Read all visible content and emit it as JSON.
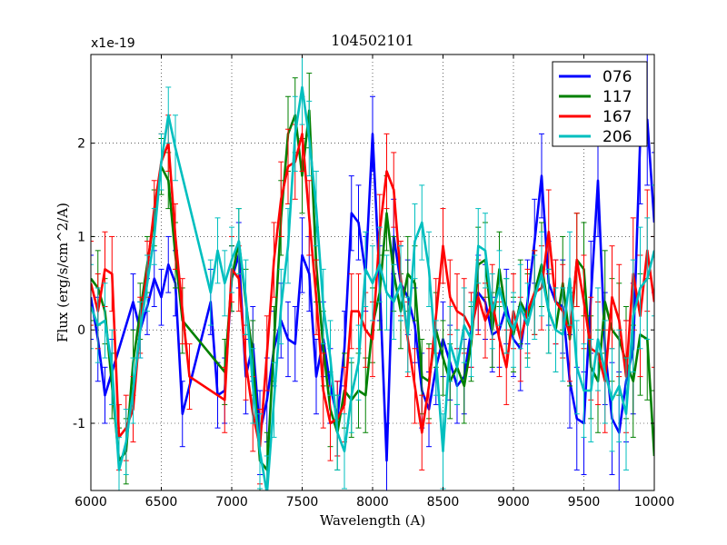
{
  "chart_data": {
    "type": "line",
    "title": "104502101",
    "xlabel": "Wavelength (A)",
    "ylabel": "Flux (erg/s/cm^2/A)",
    "y_multiplier": "x1e-19",
    "xlim": [
      6000,
      10000
    ],
    "ylim": [
      -1.72,
      2.95
    ],
    "grid": true,
    "legend_position": "top-right",
    "x_ticks": [
      6000,
      6500,
      7000,
      7500,
      8000,
      8500,
      9000,
      9500,
      10000
    ],
    "x_tick_labels": [
      "6000",
      "6500",
      "7000",
      "7500",
      "8000",
      "8500",
      "9000",
      "9500",
      "10000"
    ],
    "y_ticks": [
      -1,
      0,
      1,
      2
    ],
    "y_tick_labels": [
      "-1",
      "0",
      "1",
      "2"
    ],
    "series": [
      {
        "name": "076",
        "color": "#0000ff",
        "x": [
          6000,
          6050,
          6100,
          6150,
          6300,
          6350,
          6400,
          6450,
          6500,
          6550,
          6600,
          6650,
          6850,
          6900,
          6950,
          7000,
          7050,
          7100,
          7150,
          7200,
          7250,
          7300,
          7350,
          7400,
          7450,
          7500,
          7550,
          7600,
          7650,
          7700,
          7750,
          7800,
          7850,
          7900,
          7950,
          8000,
          8050,
          8100,
          8150,
          8200,
          8250,
          8300,
          8350,
          8400,
          8450,
          8500,
          8550,
          8600,
          8650,
          8700,
          8750,
          8800,
          8850,
          8900,
          8950,
          9000,
          9050,
          9100,
          9150,
          9200,
          9250,
          9300,
          9350,
          9400,
          9450,
          9500,
          9550,
          9600,
          9650,
          9700,
          9750,
          9800,
          9850,
          9900,
          9950,
          10000
        ],
        "y": [
          0.35,
          -0.1,
          -0.7,
          -0.45,
          0.3,
          0.0,
          0.25,
          0.55,
          0.35,
          0.7,
          0.5,
          -0.9,
          0.3,
          -0.7,
          -0.65,
          0.55,
          0.8,
          -0.5,
          -0.15,
          -1.1,
          -0.75,
          -0.2,
          0.1,
          -0.1,
          -0.15,
          0.8,
          0.6,
          -0.5,
          -0.1,
          -0.6,
          -0.95,
          -0.2,
          1.25,
          1.15,
          0.6,
          2.1,
          0.5,
          -1.4,
          1.0,
          0.5,
          0.35,
          0.05,
          -0.65,
          -0.85,
          -0.4,
          -0.1,
          -0.35,
          -0.6,
          -0.5,
          0.0,
          0.4,
          0.3,
          -0.05,
          0.0,
          0.25,
          -0.1,
          -0.2,
          0.3,
          0.95,
          1.65,
          0.5,
          0.3,
          0.25,
          -0.55,
          -0.95,
          -1.0,
          0.35,
          1.6,
          -0.2,
          -0.95,
          -1.1,
          -0.55,
          -0.2,
          2.05,
          2.25,
          1.15
        ],
        "err": [
          0.45,
          0.45,
          0.3,
          0.35,
          0.3,
          0.3,
          0.3,
          0.3,
          0.3,
          0.3,
          0.35,
          0.35,
          0.35,
          0.35,
          0.35,
          0.35,
          0.35,
          0.4,
          0.4,
          0.45,
          0.45,
          0.4,
          0.4,
          0.4,
          0.4,
          0.4,
          0.4,
          0.4,
          0.4,
          0.4,
          0.4,
          0.4,
          0.4,
          0.4,
          0.4,
          0.4,
          0.4,
          0.4,
          0.4,
          0.4,
          0.4,
          0.4,
          0.4,
          0.4,
          0.4,
          0.4,
          0.4,
          0.4,
          0.4,
          0.4,
          0.4,
          0.4,
          0.4,
          0.4,
          0.4,
          0.4,
          0.45,
          0.45,
          0.45,
          0.45,
          0.45,
          0.45,
          0.5,
          0.5,
          0.55,
          0.55,
          0.6,
          0.6,
          0.6,
          0.6,
          0.65,
          0.65,
          0.7,
          0.7,
          0.7,
          0.75
        ]
      },
      {
        "name": "117",
        "color": "#008000",
        "x": [
          6000,
          6050,
          6100,
          6150,
          6200,
          6250,
          6300,
          6350,
          6400,
          6450,
          6500,
          6550,
          6600,
          6650,
          6950,
          7000,
          7050,
          7100,
          7150,
          7200,
          7250,
          7300,
          7350,
          7400,
          7450,
          7500,
          7550,
          7600,
          7650,
          7700,
          7750,
          7800,
          7850,
          7900,
          7950,
          8000,
          8050,
          8100,
          8150,
          8200,
          8250,
          8300,
          8350,
          8400,
          8450,
          8500,
          8550,
          8600,
          8650,
          8700,
          8750,
          8800,
          8850,
          8900,
          8950,
          9000,
          9050,
          9100,
          9150,
          9200,
          9250,
          9300,
          9350,
          9400,
          9450,
          9500,
          9550,
          9600,
          9650,
          9700,
          9750,
          9800,
          9850,
          9900,
          9950,
          10000
        ],
        "y": [
          0.55,
          0.45,
          0.2,
          -0.6,
          -1.4,
          -1.3,
          -0.35,
          0.2,
          0.7,
          1.2,
          1.75,
          1.6,
          0.8,
          0.1,
          -0.45,
          0.55,
          0.95,
          0.3,
          -0.3,
          -1.4,
          -1.5,
          -0.15,
          1.2,
          2.1,
          2.3,
          1.65,
          2.35,
          0.7,
          -0.2,
          -0.85,
          -1.1,
          -0.65,
          -0.75,
          -0.65,
          -0.7,
          0.05,
          0.4,
          1.25,
          0.6,
          0.2,
          0.6,
          0.5,
          -0.5,
          -0.55,
          0.0,
          -0.3,
          -0.55,
          -0.4,
          -0.6,
          -0.15,
          0.7,
          0.75,
          0.0,
          0.65,
          0.15,
          -0.05,
          0.3,
          0.15,
          0.4,
          0.7,
          0.2,
          0.0,
          0.5,
          -0.1,
          0.75,
          0.65,
          -0.4,
          -0.55,
          0.3,
          0.0,
          -0.1,
          -0.35,
          -0.55,
          -0.05,
          -0.1,
          -1.35
        ],
        "err": [
          0.45,
          0.4,
          0.35,
          0.35,
          0.35,
          0.35,
          0.35,
          0.3,
          0.3,
          0.3,
          0.3,
          0.3,
          0.35,
          0.35,
          0.35,
          0.35,
          0.35,
          0.35,
          0.4,
          0.4,
          0.4,
          0.4,
          0.4,
          0.4,
          0.4,
          0.4,
          0.4,
          0.4,
          0.4,
          0.4,
          0.4,
          0.4,
          0.4,
          0.4,
          0.4,
          0.4,
          0.4,
          0.4,
          0.4,
          0.4,
          0.4,
          0.4,
          0.4,
          0.4,
          0.4,
          0.4,
          0.4,
          0.4,
          0.4,
          0.4,
          0.4,
          0.4,
          0.4,
          0.4,
          0.4,
          0.4,
          0.45,
          0.45,
          0.45,
          0.45,
          0.45,
          0.45,
          0.5,
          0.5,
          0.5,
          0.5,
          0.55,
          0.55,
          0.55,
          0.55,
          0.6,
          0.6,
          0.6,
          0.65,
          0.65,
          0.7
        ]
      },
      {
        "name": "167",
        "color": "#ff0000",
        "x": [
          6000,
          6050,
          6100,
          6150,
          6200,
          6250,
          6300,
          6350,
          6400,
          6450,
          6500,
          6550,
          6600,
          6650,
          6700,
          6950,
          7000,
          7050,
          7100,
          7150,
          7200,
          7250,
          7300,
          7350,
          7400,
          7450,
          7500,
          7550,
          7600,
          7650,
          7700,
          7750,
          7800,
          7850,
          7900,
          7950,
          8000,
          8050,
          8100,
          8150,
          8200,
          8250,
          8300,
          8350,
          8400,
          8450,
          8500,
          8550,
          8600,
          8650,
          8700,
          8750,
          8800,
          8850,
          8900,
          8950,
          9000,
          9050,
          9100,
          9150,
          9200,
          9250,
          9300,
          9350,
          9400,
          9450,
          9500,
          9550,
          9600,
          9650,
          9700,
          9750,
          9800,
          9850,
          9900,
          9950,
          10000
        ],
        "y": [
          0.5,
          0.2,
          0.65,
          0.6,
          -1.15,
          -1.05,
          -0.85,
          0.05,
          0.65,
          1.3,
          1.8,
          2.0,
          1.0,
          0.2,
          -0.5,
          -0.75,
          0.65,
          0.55,
          -0.35,
          -0.9,
          -1.25,
          -0.25,
          0.75,
          1.4,
          1.75,
          1.8,
          2.1,
          1.2,
          0.35,
          -0.65,
          -1.0,
          -0.95,
          -0.8,
          0.2,
          0.2,
          0.0,
          -0.1,
          1.05,
          1.7,
          1.5,
          0.55,
          -0.1,
          -0.6,
          -1.1,
          -0.6,
          0.15,
          0.9,
          0.35,
          0.2,
          0.15,
          0.0,
          0.35,
          0.1,
          0.3,
          -0.1,
          -0.4,
          0.2,
          -0.1,
          0.2,
          0.4,
          0.45,
          1.05,
          0.3,
          0.2,
          -0.05,
          0.75,
          0.3,
          -0.2,
          -0.25,
          -0.55,
          0.35,
          0.1,
          -0.5,
          0.6,
          0.15,
          0.85,
          0.3
        ],
        "err": [
          0.45,
          0.4,
          0.4,
          0.4,
          0.35,
          0.35,
          0.35,
          0.3,
          0.3,
          0.3,
          0.3,
          0.3,
          0.35,
          0.35,
          0.35,
          0.35,
          0.35,
          0.35,
          0.4,
          0.4,
          0.4,
          0.4,
          0.4,
          0.4,
          0.4,
          0.4,
          0.4,
          0.4,
          0.4,
          0.4,
          0.4,
          0.4,
          0.4,
          0.4,
          0.4,
          0.4,
          0.4,
          0.4,
          0.4,
          0.4,
          0.4,
          0.4,
          0.4,
          0.4,
          0.4,
          0.4,
          0.4,
          0.4,
          0.4,
          0.4,
          0.4,
          0.4,
          0.4,
          0.4,
          0.4,
          0.4,
          0.4,
          0.45,
          0.45,
          0.45,
          0.45,
          0.45,
          0.45,
          0.5,
          0.5,
          0.5,
          0.5,
          0.55,
          0.55,
          0.55,
          0.55,
          0.6,
          0.6,
          0.6,
          0.65,
          0.65,
          0.7
        ]
      },
      {
        "name": "206",
        "color": "#00bfbf",
        "x": [
          6000,
          6050,
          6100,
          6150,
          6200,
          6250,
          6300,
          6350,
          6400,
          6450,
          6500,
          6550,
          6600,
          6850,
          6900,
          6950,
          7000,
          7050,
          7100,
          7150,
          7200,
          7250,
          7300,
          7350,
          7400,
          7450,
          7500,
          7550,
          7600,
          7650,
          7700,
          7750,
          7800,
          7850,
          7900,
          7950,
          8000,
          8050,
          8100,
          8150,
          8200,
          8250,
          8300,
          8350,
          8400,
          8450,
          8500,
          8550,
          8600,
          8650,
          8700,
          8750,
          8800,
          8850,
          8900,
          8950,
          9000,
          9050,
          9100,
          9150,
          9200,
          9250,
          9300,
          9350,
          9400,
          9450,
          9500,
          9550,
          9600,
          9650,
          9700,
          9750,
          9800,
          9850,
          9900,
          9950,
          10000
        ],
        "y": [
          0.25,
          0.05,
          0.1,
          -0.4,
          -1.5,
          -1.2,
          -0.65,
          0.0,
          0.5,
          1.0,
          1.8,
          2.3,
          1.95,
          0.4,
          0.85,
          0.5,
          0.75,
          0.95,
          0.35,
          -0.6,
          -1.3,
          -1.75,
          -0.75,
          0.25,
          0.9,
          2.1,
          2.6,
          2.05,
          1.3,
          0.25,
          -0.3,
          -1.1,
          -1.3,
          -0.7,
          -0.35,
          0.65,
          0.5,
          0.7,
          0.4,
          0.3,
          0.5,
          -0.05,
          0.95,
          1.15,
          0.65,
          -0.3,
          -1.3,
          -0.15,
          -0.4,
          0.05,
          -0.1,
          0.9,
          0.85,
          0.2,
          0.45,
          0.15,
          0.0,
          0.25,
          0.05,
          0.35,
          0.6,
          0.2,
          0.0,
          -0.05,
          0.55,
          -0.4,
          -0.65,
          -0.65,
          -0.1,
          -0.45,
          -0.75,
          -0.6,
          -0.9,
          0.15,
          0.45,
          0.55,
          0.85
        ],
        "err": [
          0.45,
          0.4,
          0.4,
          0.4,
          0.35,
          0.35,
          0.35,
          0.3,
          0.3,
          0.3,
          0.3,
          0.3,
          0.35,
          0.35,
          0.35,
          0.35,
          0.35,
          0.35,
          0.4,
          0.4,
          0.4,
          0.4,
          0.4,
          0.4,
          0.4,
          0.4,
          0.4,
          0.4,
          0.4,
          0.4,
          0.4,
          0.4,
          0.4,
          0.4,
          0.4,
          0.4,
          0.4,
          0.4,
          0.4,
          0.4,
          0.4,
          0.4,
          0.4,
          0.4,
          0.4,
          0.4,
          0.4,
          0.4,
          0.4,
          0.4,
          0.4,
          0.4,
          0.4,
          0.4,
          0.4,
          0.4,
          0.4,
          0.45,
          0.45,
          0.45,
          0.45,
          0.45,
          0.45,
          0.5,
          0.5,
          0.5,
          0.5,
          0.55,
          0.55,
          0.55,
          0.55,
          0.6,
          0.6,
          0.6,
          0.65,
          0.65,
          0.7
        ]
      }
    ]
  }
}
